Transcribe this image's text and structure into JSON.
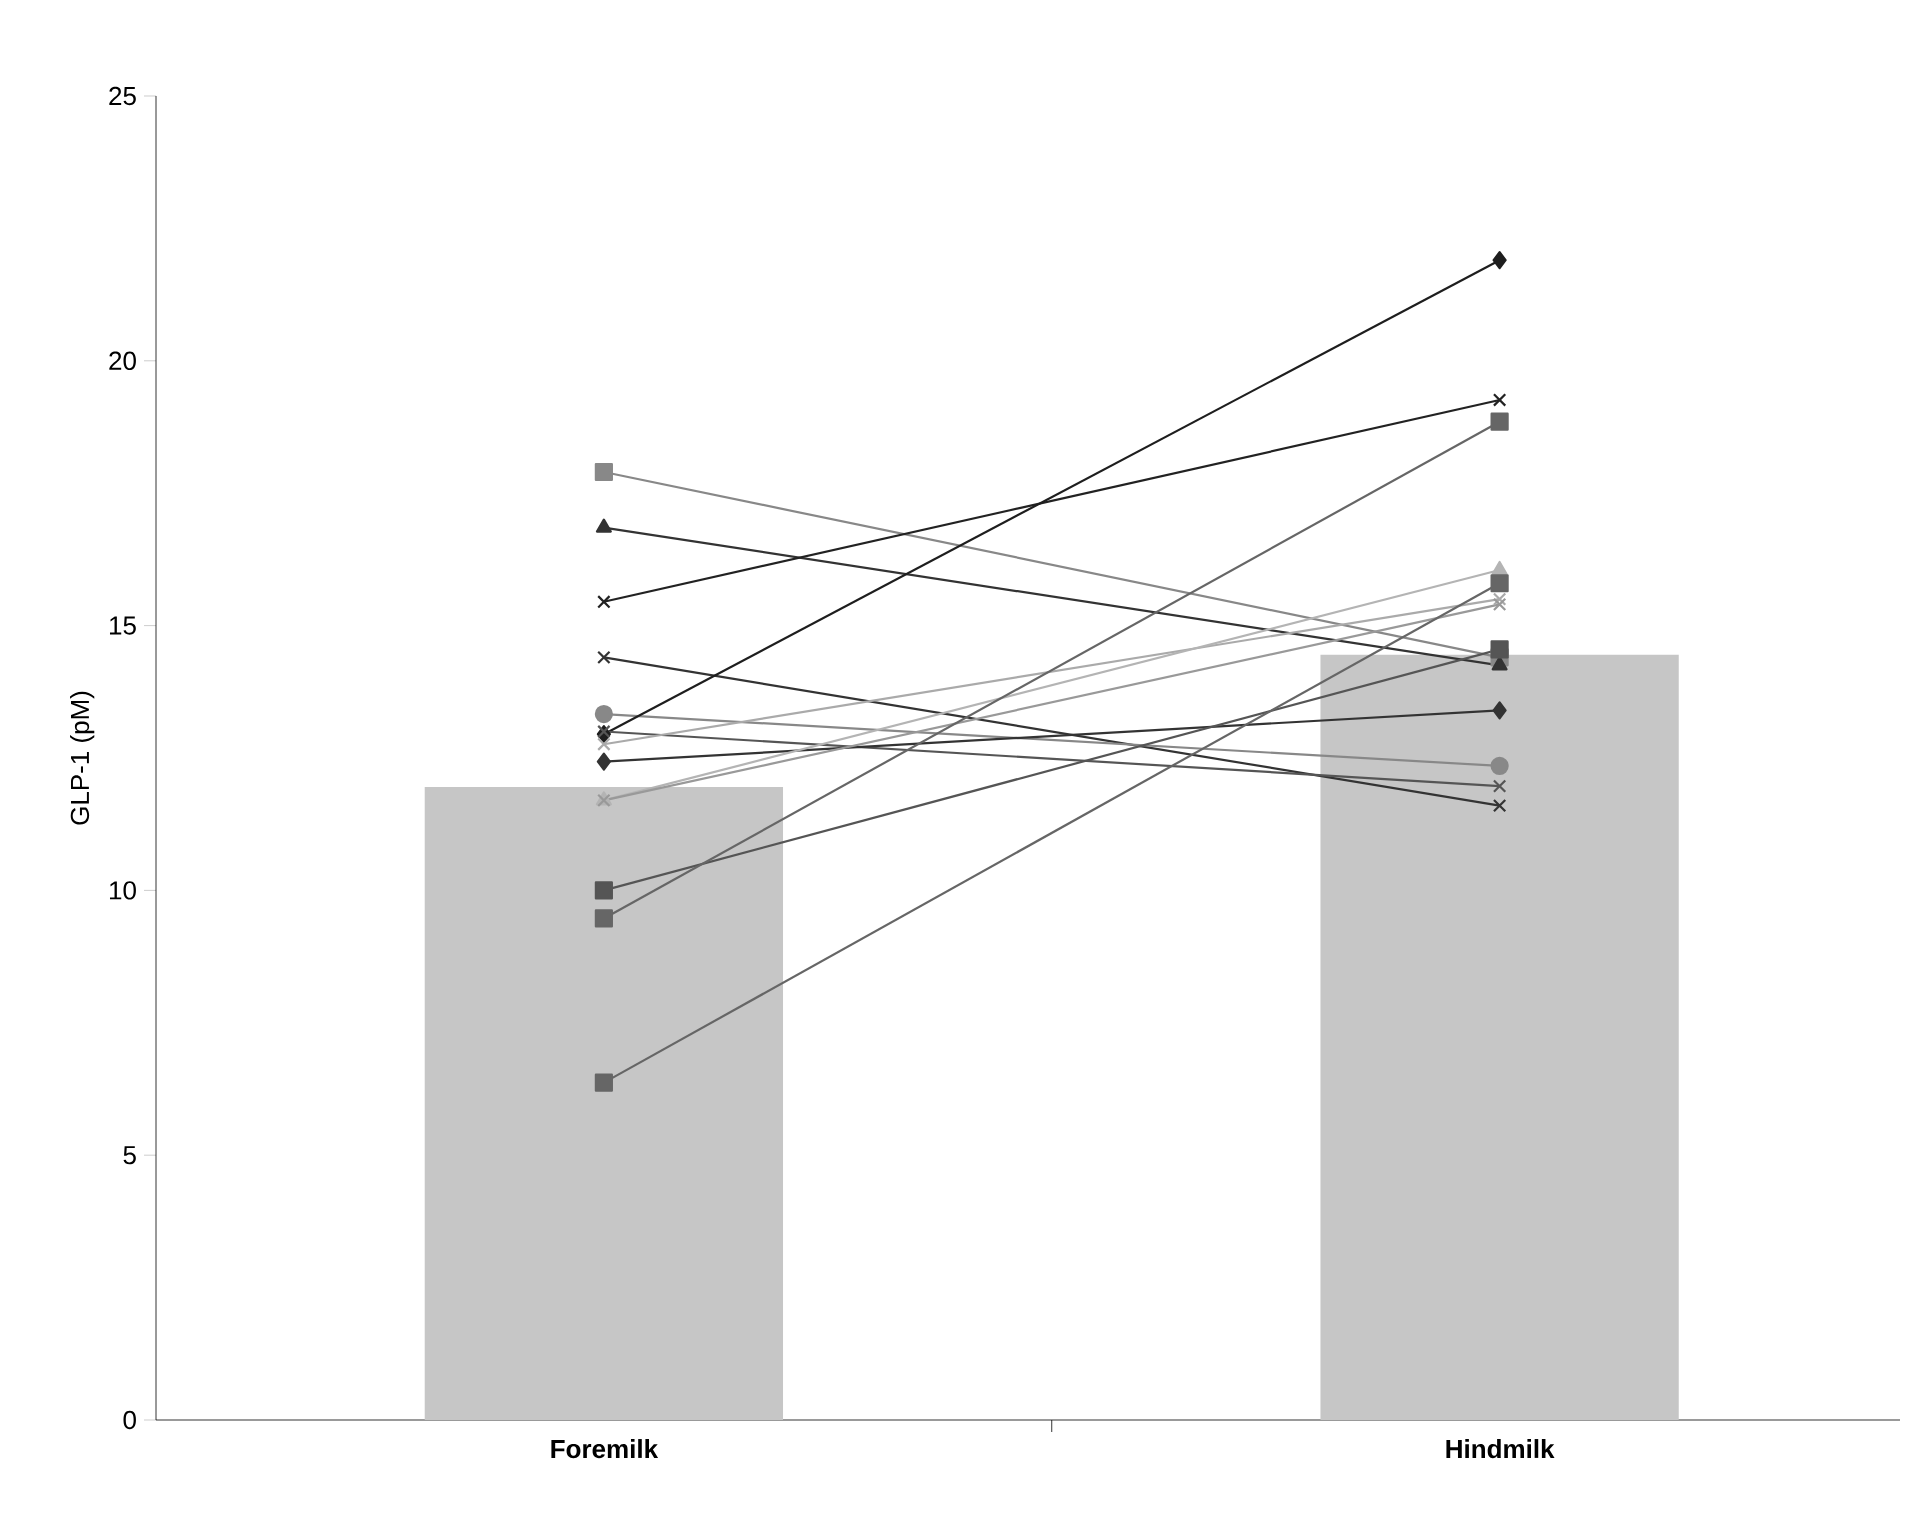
{
  "chart_data": {
    "type": "bar",
    "ylabel": "GLP-1 (pM)",
    "categories": [
      "Foremilk",
      "Hindmilk"
    ],
    "ylim": [
      0,
      25
    ],
    "yticks": [
      0,
      5,
      10,
      15,
      20,
      25
    ],
    "grid": false,
    "series": [
      {
        "color": "#c6c6c6",
        "values": [
          11.95,
          14.45
        ]
      },
      {
        "type": "line",
        "marker": "square",
        "color": "#888888",
        "values": [
          17.9,
          14.4
        ]
      },
      {
        "type": "line",
        "marker": "triangle",
        "color": "#333333",
        "values": [
          16.85,
          14.25
        ]
      },
      {
        "type": "line",
        "marker": "cross",
        "color": "#222222",
        "values": [
          15.45,
          19.26
        ]
      },
      {
        "type": "line",
        "marker": "cross",
        "color": "#333333",
        "values": [
          14.4,
          11.6
        ]
      },
      {
        "type": "line",
        "marker": "circle",
        "color": "#888888",
        "values": [
          13.33,
          12.35
        ]
      },
      {
        "type": "line",
        "marker": "diamond",
        "color": "#1e1e1e",
        "values": [
          12.95,
          21.9
        ]
      },
      {
        "type": "line",
        "marker": "cross",
        "color": "#555555",
        "values": [
          13.0,
          11.97
        ]
      },
      {
        "type": "line",
        "marker": "cross",
        "color": "#aaaaaa",
        "values": [
          12.76,
          15.5
        ]
      },
      {
        "type": "line",
        "marker": "diamond",
        "color": "#333333",
        "values": [
          12.43,
          13.4
        ]
      },
      {
        "type": "line",
        "marker": "triangle",
        "color": "#b4b4b4",
        "values": [
          11.7,
          16.05
        ]
      },
      {
        "type": "line",
        "marker": "cross",
        "color": "#999999",
        "values": [
          11.7,
          15.4
        ]
      },
      {
        "type": "line",
        "marker": "square",
        "color": "#555555",
        "values": [
          10.0,
          14.55
        ]
      },
      {
        "type": "line",
        "marker": "square",
        "color": "#666666",
        "values": [
          9.47,
          18.85
        ]
      },
      {
        "type": "line",
        "marker": "square",
        "color": "#666666",
        "values": [
          6.37,
          15.8
        ]
      }
    ]
  }
}
